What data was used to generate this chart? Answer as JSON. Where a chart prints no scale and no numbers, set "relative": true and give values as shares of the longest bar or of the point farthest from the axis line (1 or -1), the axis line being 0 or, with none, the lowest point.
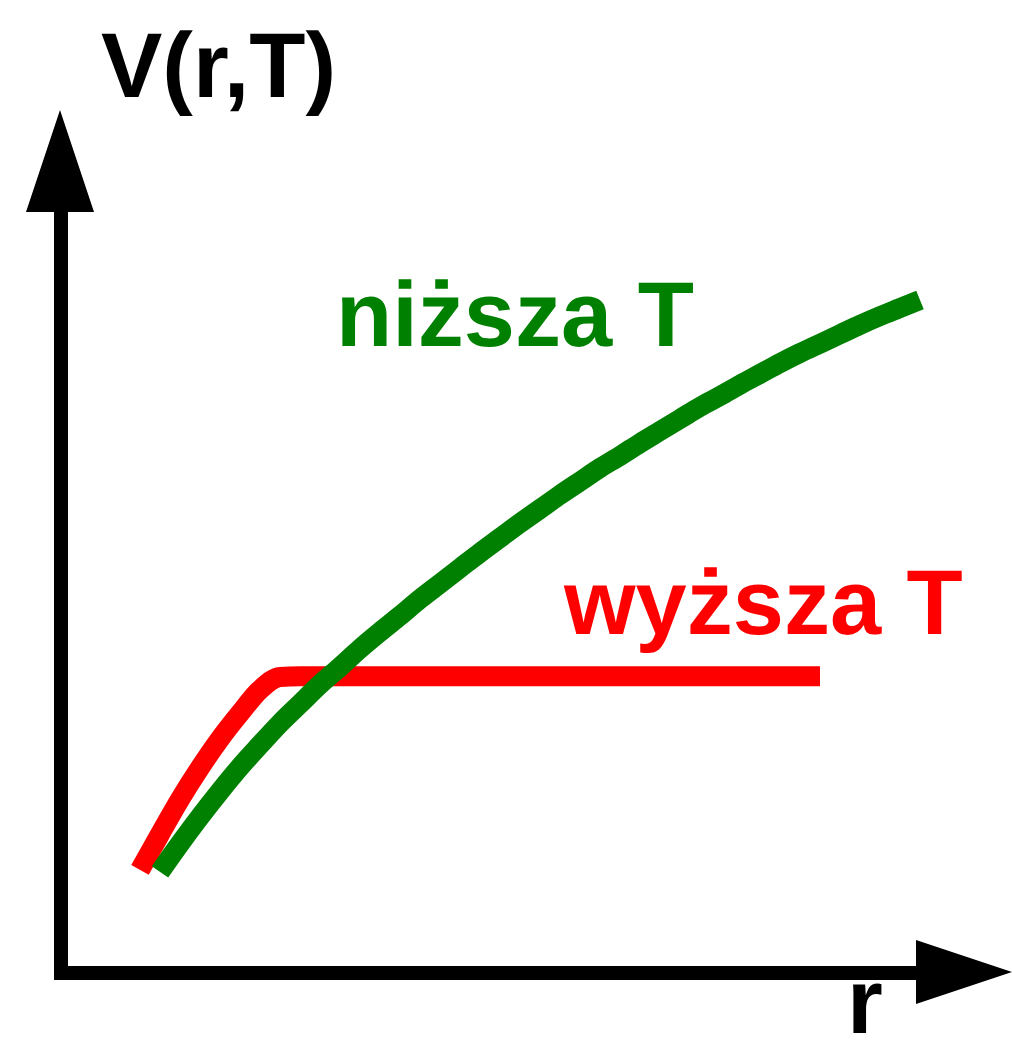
{
  "chart_data": {
    "type": "line",
    "relative": true,
    "xlabel": "r",
    "ylabel": "V(r,T)",
    "categories": [
      null,
      null,
      null,
      null,
      null,
      null,
      null,
      null,
      null,
      null,
      null,
      null,
      null,
      null,
      null,
      null,
      null,
      null,
      null,
      null,
      null,
      null,
      null,
      null,
      null,
      null,
      null,
      null,
      null,
      null,
      null,
      null,
      null,
      null,
      null,
      null,
      null,
      null,
      null,
      null
    ],
    "series": [
      {
        "name": "wyższa T",
        "color": "#ff0000",
        "values": [
          0.152,
          0.205,
          0.257,
          0.304,
          0.347,
          0.385,
          0.42,
          0.439,
          0.44,
          0.44,
          0.44,
          0.44,
          0.44,
          0.44,
          0.44,
          0.44,
          0.44,
          0.44,
          0.44,
          0.44,
          0.44,
          0.44,
          0.44,
          0.44,
          0.44,
          0.44,
          0.44,
          0.44,
          0.44,
          0.44,
          0.44,
          0.44,
          0.44,
          0.44,
          0.44,
          null,
          null,
          null,
          null,
          null
        ]
      },
      {
        "name": "niższa T",
        "color": "#008000",
        "values": [
          null,
          0.149,
          0.191,
          0.231,
          0.269,
          0.305,
          0.338,
          0.37,
          0.399,
          0.428,
          0.454,
          0.481,
          0.506,
          0.53,
          0.555,
          0.578,
          0.601,
          0.624,
          0.646,
          0.668,
          0.689,
          0.71,
          0.73,
          0.75,
          0.768,
          0.787,
          0.805,
          0.823,
          0.841,
          0.857,
          0.874,
          0.89,
          0.906,
          0.921,
          0.935,
          0.949,
          0.963,
          0.976,
          0.988,
          1
        ]
      }
    ]
  }
}
